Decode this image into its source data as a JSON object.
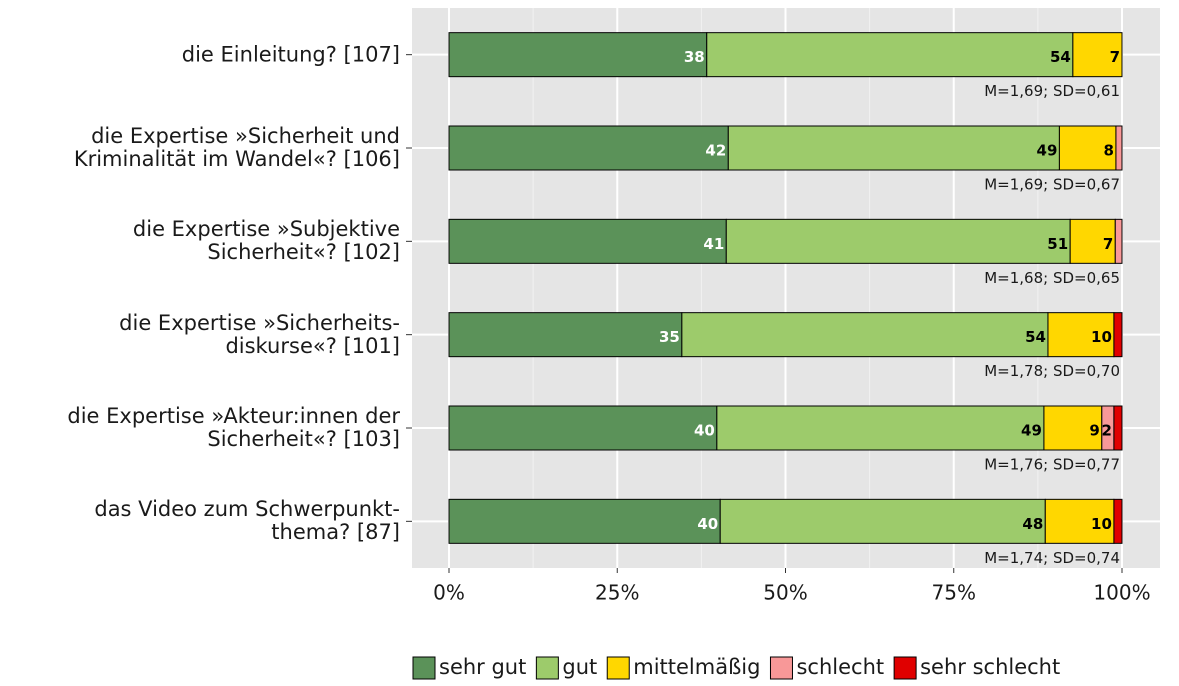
{
  "chart_data": {
    "type": "stacked_bar_horizontal",
    "categories": [
      "die Einleitung? [107]",
      "die Expertise »Sicherheit und\nKriminalität im Wandel«? [106]",
      "die Expertise »Subjektive\nSicherheit«? [102]",
      "die Expertise »Sicherheits-\ndiskurse«? [101]",
      "die Expertise »Akteur:innen der\nSicherheit«? [103]",
      "das Video zum Schwerpunkt-\nthema? [87]"
    ],
    "series": [
      {
        "name": "sehr gut",
        "color": "#5b9259",
        "values": [
          38.3,
          41.5,
          41.2,
          34.6,
          39.8,
          40.3
        ],
        "value_labels": [
          "38",
          "42",
          "41",
          "35",
          "40",
          "40"
        ]
      },
      {
        "name": "gut",
        "color": "#9dcb6b",
        "values": [
          54.4,
          49.2,
          51.1,
          54.4,
          48.6,
          48.3
        ],
        "value_labels": [
          "54",
          "49",
          "51",
          "54",
          "49",
          "48"
        ]
      },
      {
        "name": "mittelmäßig",
        "color": "#ffd700",
        "values": [
          7.3,
          8.4,
          6.7,
          9.8,
          8.6,
          10.2
        ],
        "value_labels": [
          "7",
          "8",
          "7",
          "10",
          "9",
          "10"
        ]
      },
      {
        "name": "schlecht",
        "color": "#f89898",
        "values": [
          0,
          0.9,
          1.0,
          0,
          1.8,
          0
        ],
        "value_labels": [
          null,
          null,
          null,
          null,
          "2",
          null
        ]
      },
      {
        "name": "sehr schlecht",
        "color": "#e00000",
        "values": [
          0,
          0,
          0,
          1.2,
          1.2,
          1.2
        ],
        "value_labels": [
          null,
          null,
          null,
          null,
          null,
          null
        ]
      }
    ],
    "annotations": [
      "M=1,69; SD=0,61",
      "M=1,69; SD=0,67",
      "M=1,68; SD=0,65",
      "M=1,78; SD=0,70",
      "M=1,76; SD=0,77",
      "M=1,74; SD=0,74"
    ],
    "xlim": [
      0,
      100
    ],
    "xticks": [
      {
        "value": 0,
        "label": "0%"
      },
      {
        "value": 25,
        "label": "25%"
      },
      {
        "value": 50,
        "label": "50%"
      },
      {
        "value": 75,
        "label": "75%"
      },
      {
        "value": 100,
        "label": "100%"
      }
    ],
    "xticks_minor": [
      12.5,
      37.5,
      62.5,
      87.5
    ],
    "grid": true,
    "legend": "bottom"
  }
}
